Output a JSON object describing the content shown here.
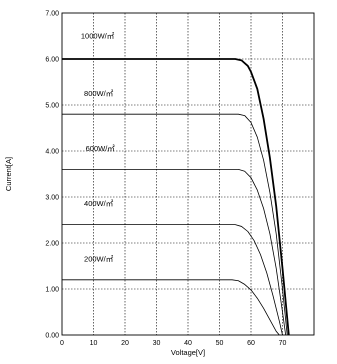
{
  "chart_data": {
    "type": "line",
    "xlabel": "Voltage[V]",
    "ylabel": "Current[A]",
    "xlim": [
      0,
      80
    ],
    "ylim": [
      0,
      7
    ],
    "xticks": [
      0,
      10,
      20,
      30,
      40,
      50,
      60,
      70
    ],
    "yticks": [
      "0.00",
      "1.00",
      "2.00",
      "3.00",
      "4.00",
      "5.00",
      "6.00",
      "7.00"
    ],
    "grid": true,
    "series": [
      {
        "name": "1000W/㎡",
        "isc": 6.0,
        "knee_v": 57,
        "voc": 72,
        "bold": true,
        "label_x": 6,
        "label_y": 6.45,
        "points": [
          [
            0,
            6.0
          ],
          [
            55,
            6.0
          ],
          [
            57,
            5.97
          ],
          [
            59,
            5.85
          ],
          [
            60,
            5.72
          ],
          [
            62,
            5.35
          ],
          [
            64,
            4.7
          ],
          [
            66,
            3.85
          ],
          [
            68,
            2.8
          ],
          [
            70,
            1.45
          ],
          [
            72,
            0
          ]
        ]
      },
      {
        "name": "800W/㎡",
        "isc": 4.8,
        "knee_v": 57,
        "voc": 71.5,
        "bold": false,
        "label_x": 7,
        "label_y": 5.2,
        "points": [
          [
            0,
            4.8
          ],
          [
            56,
            4.8
          ],
          [
            58,
            4.77
          ],
          [
            60,
            4.62
          ],
          [
            62,
            4.3
          ],
          [
            64,
            3.8
          ],
          [
            66,
            3.1
          ],
          [
            68,
            2.2
          ],
          [
            70,
            1.0
          ],
          [
            71.5,
            0
          ]
        ]
      },
      {
        "name": "600W/㎡",
        "isc": 3.6,
        "knee_v": 56,
        "voc": 71,
        "bold": false,
        "label_x": 7.5,
        "label_y": 4.0,
        "points": [
          [
            0,
            3.6
          ],
          [
            56,
            3.6
          ],
          [
            58,
            3.56
          ],
          [
            60,
            3.42
          ],
          [
            62,
            3.15
          ],
          [
            64,
            2.75
          ],
          [
            66,
            2.2
          ],
          [
            68,
            1.45
          ],
          [
            70,
            0.5
          ],
          [
            71,
            0
          ]
        ]
      },
      {
        "name": "400W/㎡",
        "isc": 2.4,
        "knee_v": 55,
        "voc": 70,
        "bold": false,
        "label_x": 7,
        "label_y": 2.8,
        "points": [
          [
            0,
            2.4
          ],
          [
            55,
            2.4
          ],
          [
            57,
            2.36
          ],
          [
            59,
            2.25
          ],
          [
            61,
            2.05
          ],
          [
            63,
            1.75
          ],
          [
            65,
            1.35
          ],
          [
            67,
            0.85
          ],
          [
            69,
            0.3
          ],
          [
            70,
            0
          ]
        ]
      },
      {
        "name": "200W/㎡",
        "isc": 1.2,
        "knee_v": 54,
        "voc": 69,
        "bold": false,
        "label_x": 7,
        "label_y": 1.6,
        "points": [
          [
            0,
            1.2
          ],
          [
            54,
            1.2
          ],
          [
            56,
            1.18
          ],
          [
            58,
            1.1
          ],
          [
            60,
            0.98
          ],
          [
            62,
            0.8
          ],
          [
            64,
            0.58
          ],
          [
            66,
            0.33
          ],
          [
            68,
            0.08
          ],
          [
            69,
            0
          ]
        ]
      }
    ]
  }
}
